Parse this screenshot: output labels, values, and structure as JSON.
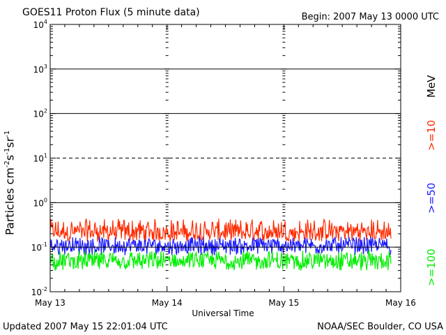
{
  "header": {
    "title": "GOES11 Proton Flux (5 minute data)",
    "begin": "Begin: 2007 May 13 0000 UTC"
  },
  "footer": {
    "updated": "Updated 2007 May 15 22:01:04 UTC",
    "credit": "NOAA/SEC Boulder, CO USA"
  },
  "axes": {
    "xlabel": "Universal Time",
    "ylabel_base": "Particles cm",
    "ylabel_exp1": "-2",
    "ylabel_mid1": "s",
    "ylabel_exp2": "-1",
    "ylabel_mid2": "sr",
    "ylabel_exp3": "-1"
  },
  "legend": {
    "unit": "MeV",
    "items": [
      {
        "label": ">=10",
        "color": "#ff2a00"
      },
      {
        "label": ">=50",
        "color": "#1a1aff"
      },
      {
        "label": ">=100",
        "color": "#00ee00"
      }
    ]
  },
  "chart_data": {
    "type": "line",
    "title": "GOES11 Proton Flux (5 minute data)",
    "xlabel": "Universal Time",
    "ylabel": "Particles cm-2s-1sr-1",
    "y_scale": "log",
    "ylim": [
      0.01,
      10000
    ],
    "y_tick_exponents": [
      -2,
      -1,
      0,
      1,
      2,
      3,
      4
    ],
    "x_ticks": [
      "May 13",
      "May 14",
      "May 15",
      "May 16"
    ],
    "xlim_days": [
      13,
      16
    ],
    "data_end_day": 15.92,
    "grid": {
      "solid_decades": [
        -1,
        0,
        2,
        3
      ],
      "dashed_decades": [
        1
      ]
    },
    "series": [
      {
        "name": ">=10 MeV",
        "color": "#ff2a00",
        "typical": 0.2,
        "range": [
          0.1,
          0.55
        ]
      },
      {
        "name": ">=50 MeV",
        "color": "#1a1aff",
        "typical": 0.1,
        "range": [
          0.05,
          0.2
        ]
      },
      {
        "name": ">=100 MeV",
        "color": "#00ee00",
        "typical": 0.045,
        "range": [
          0.022,
          0.1
        ]
      }
    ]
  }
}
